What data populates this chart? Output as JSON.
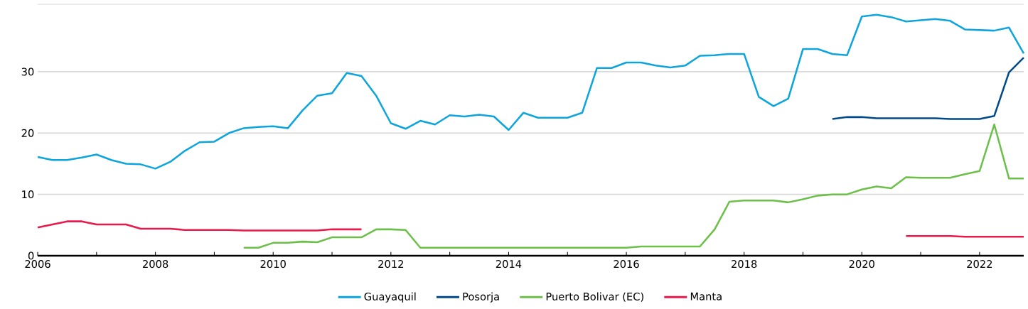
{
  "chart_data": {
    "type": "line",
    "x": [
      2006,
      2006.25,
      2006.5,
      2006.75,
      2007,
      2007.25,
      2007.5,
      2007.75,
      2008,
      2008.25,
      2008.5,
      2008.75,
      2009,
      2009.25,
      2009.5,
      2009.75,
      2010,
      2010.25,
      2010.5,
      2010.75,
      2011,
      2011.25,
      2011.5,
      2011.75,
      2012,
      2012.25,
      2012.5,
      2012.75,
      2013,
      2013.25,
      2013.5,
      2013.75,
      2014,
      2014.25,
      2014.5,
      2014.75,
      2015,
      2015.25,
      2015.5,
      2015.75,
      2016,
      2016.25,
      2016.5,
      2016.75,
      2017,
      2017.25,
      2017.5,
      2017.75,
      2018,
      2018.25,
      2018.5,
      2018.75,
      2019,
      2019.25,
      2019.5,
      2019.75,
      2020,
      2020.25,
      2020.5,
      2020.75,
      2021,
      2021.25,
      2021.5,
      2021.75,
      2022,
      2022.25,
      2022.5,
      2022.75
    ],
    "series": [
      {
        "name": "Guayaquil",
        "color": "#0ea5dd",
        "values": [
          16.1,
          15.6,
          15.6,
          16.0,
          16.5,
          15.6,
          15.0,
          14.9,
          14.2,
          15.3,
          17.1,
          18.5,
          18.6,
          20.0,
          20.8,
          21.0,
          21.1,
          20.8,
          23.7,
          26.1,
          26.5,
          29.8,
          29.3,
          26.1,
          21.6,
          20.7,
          22.0,
          21.4,
          22.9,
          22.7,
          23.0,
          22.7,
          20.5,
          23.3,
          22.5,
          22.5,
          22.5,
          23.3,
          30.6,
          30.6,
          31.5,
          31.5,
          31.0,
          30.7,
          31.0,
          32.6,
          32.7,
          32.9,
          32.9,
          25.9,
          24.4,
          25.6,
          33.7,
          33.7,
          32.9,
          32.7,
          39.0,
          39.3,
          38.9,
          38.2,
          38.4,
          38.6,
          38.3,
          36.9,
          36.8,
          36.7,
          37.2,
          33.0
        ]
      },
      {
        "name": "Posorja",
        "color": "#004a8a",
        "values": [
          null,
          null,
          null,
          null,
          null,
          null,
          null,
          null,
          null,
          null,
          null,
          null,
          null,
          null,
          null,
          null,
          null,
          null,
          null,
          null,
          null,
          null,
          null,
          null,
          null,
          null,
          null,
          null,
          null,
          null,
          null,
          null,
          null,
          null,
          null,
          null,
          null,
          null,
          null,
          null,
          null,
          null,
          null,
          null,
          null,
          null,
          null,
          null,
          null,
          null,
          null,
          null,
          null,
          null,
          22.3,
          22.6,
          22.6,
          22.4,
          22.4,
          22.4,
          22.4,
          22.4,
          22.3,
          22.3,
          22.3,
          22.8,
          29.9,
          32.3
        ]
      },
      {
        "name": "Puerto Bolivar (EC)",
        "color": "#6cc04a",
        "values": [
          null,
          null,
          null,
          null,
          null,
          null,
          null,
          null,
          null,
          null,
          null,
          null,
          null,
          null,
          1.3,
          1.3,
          2.1,
          2.1,
          2.3,
          2.2,
          3.0,
          3.0,
          3.0,
          4.3,
          4.3,
          4.2,
          1.3,
          1.3,
          1.3,
          1.3,
          1.3,
          1.3,
          1.3,
          1.3,
          1.3,
          1.3,
          1.3,
          1.3,
          1.3,
          1.3,
          1.3,
          1.5,
          1.5,
          1.5,
          1.5,
          1.5,
          4.3,
          8.8,
          9.0,
          9.0,
          9.0,
          8.7,
          9.2,
          9.8,
          10.0,
          10.0,
          10.8,
          11.3,
          11.0,
          12.8,
          12.7,
          12.7,
          12.7,
          13.3,
          13.8,
          21.4,
          12.6,
          12.6
        ]
      },
      {
        "name": "Manta",
        "color": "#e8194b",
        "values": [
          4.6,
          5.1,
          5.6,
          5.6,
          5.1,
          5.1,
          5.1,
          4.4,
          4.4,
          4.4,
          4.2,
          4.2,
          4.2,
          4.2,
          4.1,
          4.1,
          4.1,
          4.1,
          4.1,
          4.1,
          4.3,
          4.3,
          4.3,
          null,
          null,
          null,
          null,
          null,
          null,
          null,
          null,
          null,
          null,
          null,
          null,
          null,
          null,
          null,
          null,
          null,
          null,
          null,
          null,
          null,
          null,
          null,
          null,
          null,
          null,
          null,
          null,
          null,
          null,
          null,
          null,
          null,
          null,
          null,
          null,
          3.2,
          3.2,
          3.2,
          3.2,
          3.1,
          3.1,
          3.1,
          3.1,
          3.1
        ]
      }
    ],
    "xlim": [
      2006,
      2022.75
    ],
    "xticks": [
      2006,
      {
        "value": 2007,
        "label": null
      },
      2008,
      {
        "value": 2009,
        "label": null
      },
      2010,
      {
        "value": 2011,
        "label": null
      },
      2012,
      {
        "value": 2013,
        "label": null
      },
      2014,
      {
        "value": 2015,
        "label": null
      },
      2016,
      {
        "value": 2017,
        "label": null
      },
      2018,
      {
        "value": 2019,
        "label": null
      },
      2020,
      {
        "value": 2021,
        "label": null
      },
      2022
    ],
    "ylim": [
      0,
      41
    ],
    "yticks": [
      0,
      10,
      20,
      30
    ],
    "grid": "y",
    "legend": "bottom",
    "marker": "none",
    "line_style": "solid"
  }
}
